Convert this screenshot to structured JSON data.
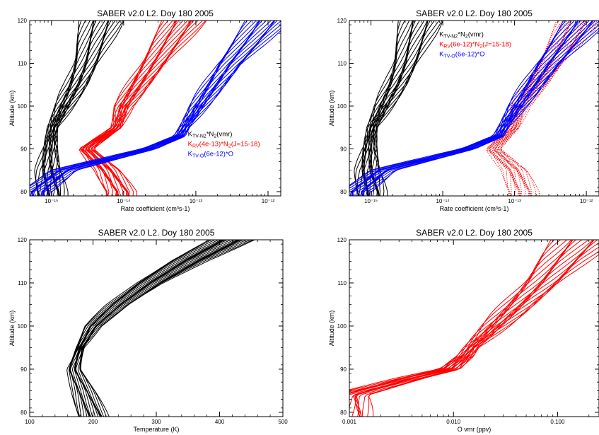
{
  "chart_data": [
    {
      "type": "line",
      "title": "SABER v2.0 L2. Doy 180 2005",
      "xlabel": "Rate coefficient (cm³s-1)",
      "ylabel": "Altitude (km)",
      "xscale": "log",
      "xlim": [
        5e-16,
        1.5e-12
      ],
      "ylim": [
        79,
        120
      ],
      "x_ticks": [
        {
          "value": 1e-15,
          "label": "10⁻¹⁵"
        },
        {
          "value": 1e-14,
          "label": "10⁻¹⁴"
        },
        {
          "value": 1e-13,
          "label": "10⁻¹³"
        },
        {
          "value": 1e-12,
          "label": "10⁻¹²"
        }
      ],
      "y_ticks": [
        80,
        90,
        100,
        110,
        120
      ],
      "legend_position": "right-middle",
      "series": [
        {
          "legend": {
            "main": "K",
            "sub": "TV-N2",
            "rest": "*N",
            "sub2": "2",
            "tail": "(vmr)"
          },
          "color": "#000000",
          "style": "solid",
          "count": 20,
          "profile": [
            [
              80,
              1e-15
            ],
            [
              85,
              9e-16
            ],
            [
              90,
              9.5e-16
            ],
            [
              95,
              1.05e-15
            ],
            [
              100,
              1.5e-15
            ],
            [
              105,
              2.2e-15
            ],
            [
              110,
              3e-15
            ],
            [
              115,
              3.8e-15
            ],
            [
              120,
              5e-15
            ]
          ]
        },
        {
          "legend": {
            "main": "K",
            "sub": "RV",
            "rest": "(4e-13)*N",
            "sub2": "2",
            "tail": "(J=15-18)"
          },
          "color": "#ff0000",
          "style": "solid",
          "count": 20,
          "profile": [
            [
              80,
              9e-15
            ],
            [
              85,
              6e-15
            ],
            [
              90,
              3e-15
            ],
            [
              95,
              8e-15
            ],
            [
              100,
              1e-14
            ],
            [
              105,
              1.6e-14
            ],
            [
              110,
              2.6e-14
            ],
            [
              115,
              4.2e-14
            ],
            [
              120,
              7e-14
            ]
          ]
        },
        {
          "legend": {
            "main": "K",
            "sub": "TV-O",
            "rest": "(6e-12)*O",
            "sub2": "",
            "tail": ""
          },
          "color": "#0000ff",
          "style": "solid",
          "count": 20,
          "profile": [
            [
              80,
              6e-16
            ],
            [
              85,
              1.5e-15
            ],
            [
              90,
              2.2e-14
            ],
            [
              93,
              6e-14
            ],
            [
              95,
              7e-14
            ],
            [
              100,
              1.1e-13
            ],
            [
              105,
              1.8e-13
            ],
            [
              110,
              3e-13
            ],
            [
              115,
              5.5e-13
            ],
            [
              120,
              1e-12
            ]
          ]
        }
      ]
    },
    {
      "type": "line",
      "title": "SABER v2.0 L2. Doy 180 2005",
      "xlabel": "Rate coefficient (cm³s-1)",
      "ylabel": "Altitude (km)",
      "xscale": "log",
      "xlim": [
        5e-16,
        1.5e-12
      ],
      "ylim": [
        79,
        120
      ],
      "x_ticks": [
        {
          "value": 1e-15,
          "label": "10⁻¹⁵"
        },
        {
          "value": 1e-14,
          "label": "10⁻¹⁴"
        },
        {
          "value": 1e-13,
          "label": "10⁻¹³"
        },
        {
          "value": 1e-12,
          "label": "10⁻¹²"
        }
      ],
      "y_ticks": [
        80,
        90,
        100,
        110,
        120
      ],
      "legend_position": "top-middle",
      "series": [
        {
          "legend": {
            "main": "K",
            "sub": "TV-N2",
            "rest": "*N",
            "sub2": "2",
            "tail": "(vmr)"
          },
          "color": "#000000",
          "style": "solid",
          "count": 20,
          "profile": [
            [
              80,
              1e-15
            ],
            [
              85,
              9e-16
            ],
            [
              90,
              9.5e-16
            ],
            [
              95,
              1.05e-15
            ],
            [
              100,
              1.5e-15
            ],
            [
              105,
              2.2e-15
            ],
            [
              110,
              3e-15
            ],
            [
              115,
              3.8e-15
            ],
            [
              120,
              5e-15
            ]
          ]
        },
        {
          "legend": {
            "main": "K",
            "sub": "RV",
            "rest": "(6e-12)*N",
            "sub2": "2",
            "tail": "(J=15-18)"
          },
          "color": "#ff0000",
          "style": "dotted",
          "count": 20,
          "profile": [
            [
              80,
              1.3e-13
            ],
            [
              85,
              1e-13
            ],
            [
              90,
              5e-14
            ],
            [
              95,
              1e-13
            ],
            [
              100,
              1.2e-13
            ],
            [
              105,
              2e-13
            ],
            [
              110,
              3.2e-13
            ],
            [
              115,
              5e-13
            ],
            [
              120,
              8e-13
            ]
          ]
        },
        {
          "legend": {
            "main": "K",
            "sub": "TV-O",
            "rest": "(6e-12)*O",
            "sub2": "",
            "tail": ""
          },
          "color": "#0000ff",
          "style": "solid",
          "count": 20,
          "profile": [
            [
              80,
              6e-16
            ],
            [
              85,
              1.5e-15
            ],
            [
              90,
              2.2e-14
            ],
            [
              93,
              6e-14
            ],
            [
              95,
              7e-14
            ],
            [
              100,
              1.1e-13
            ],
            [
              105,
              1.8e-13
            ],
            [
              110,
              3e-13
            ],
            [
              115,
              5.5e-13
            ],
            [
              120,
              1e-12
            ]
          ]
        }
      ]
    },
    {
      "type": "line",
      "title": "SABER v2.0 L2. Doy 180 2005",
      "xlabel": "Temperature (K)",
      "ylabel": "Altitude (km)",
      "xscale": "linear",
      "xlim": [
        100,
        500
      ],
      "ylim": [
        79,
        120
      ],
      "x_ticks": [
        {
          "value": 100,
          "label": "100"
        },
        {
          "value": 200,
          "label": "200"
        },
        {
          "value": 300,
          "label": "300"
        },
        {
          "value": 400,
          "label": "400"
        },
        {
          "value": 500,
          "label": "500"
        }
      ],
      "y_ticks": [
        80,
        90,
        100,
        110,
        120
      ],
      "series": [
        {
          "color": "#000000",
          "style": "solid",
          "count": 20,
          "profile": [
            [
              79,
              200
            ],
            [
              85,
              185
            ],
            [
              90,
              170
            ],
            [
              95,
              180
            ],
            [
              100,
              200
            ],
            [
              105,
              240
            ],
            [
              110,
              290
            ],
            [
              115,
              350
            ],
            [
              120,
              420
            ]
          ]
        }
      ]
    },
    {
      "type": "line",
      "title": "SABER v2.0 L2. Doy 180 2005",
      "xlabel": "O vmr (ppv)",
      "ylabel": "Altitude (km)",
      "xscale": "log",
      "xlim": [
        0.001,
        0.25
      ],
      "ylim": [
        79,
        120
      ],
      "x_ticks": [
        {
          "value": 0.001,
          "label": "0.001"
        },
        {
          "value": 0.01,
          "label": "0.010"
        },
        {
          "value": 0.1,
          "label": "0.100"
        }
      ],
      "y_ticks": [
        80,
        90,
        100,
        110,
        120
      ],
      "series": [
        {
          "color": "#ff0000",
          "style": "solid",
          "count": 20,
          "profile": [
            [
              84,
              0.001
            ],
            [
              88,
              0.004
            ],
            [
              90,
              0.009
            ],
            [
              93,
              0.013
            ],
            [
              95,
              0.015
            ],
            [
              100,
              0.025
            ],
            [
              105,
              0.042
            ],
            [
              110,
              0.07
            ],
            [
              115,
              0.11
            ],
            [
              120,
              0.18
            ]
          ]
        }
      ]
    }
  ]
}
